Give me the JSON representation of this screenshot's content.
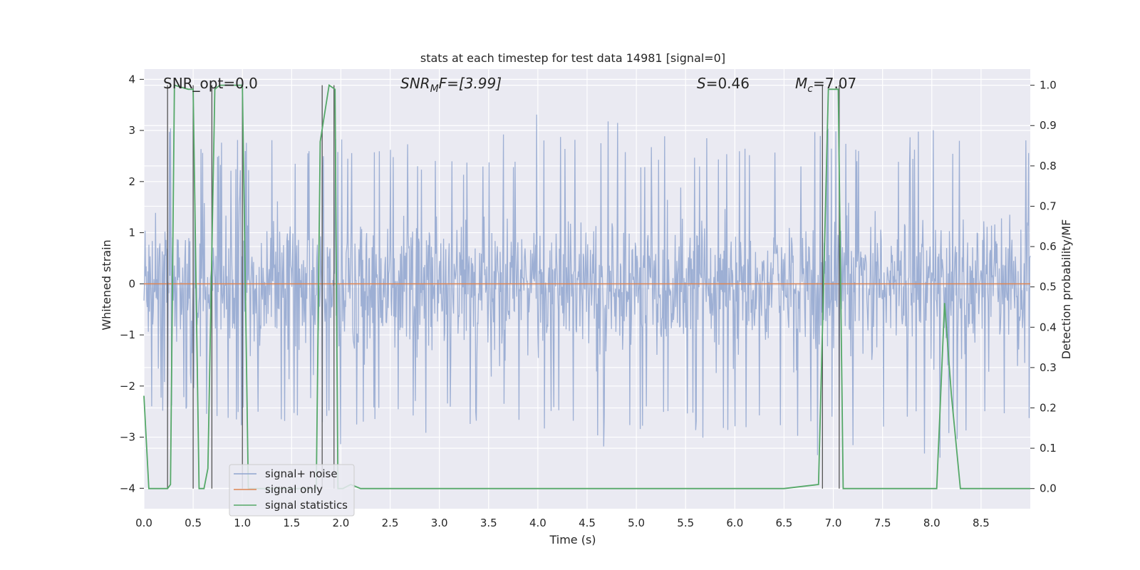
{
  "chart_data": {
    "type": "line",
    "title": "stats at each timestep for test data 14981 [signal=0]",
    "xlabel": "Time (s)",
    "ylabel": "Whitened strain",
    "y2label": "Detection probability/MF",
    "xlim": [
      0.0,
      9.0
    ],
    "ylim": [
      -4.4,
      4.2
    ],
    "y2lim": [
      -0.05,
      1.04
    ],
    "xticks": [
      "0.0",
      "0.5",
      "1.0",
      "1.5",
      "2.0",
      "2.5",
      "3.0",
      "3.5",
      "4.0",
      "4.5",
      "5.0",
      "5.5",
      "6.0",
      "6.5",
      "7.0",
      "7.5",
      "8.0",
      "8.5"
    ],
    "yticks": [
      "4",
      "3",
      "2",
      "1",
      "0",
      "−1",
      "−2",
      "−3",
      "−4"
    ],
    "y2ticks": [
      "1.0",
      "0.9",
      "0.8",
      "0.7",
      "0.6",
      "0.5",
      "0.4",
      "0.3",
      "0.2",
      "0.1",
      "0.0"
    ],
    "grid": true,
    "legend_position": "lower-left",
    "annotations": {
      "snr_opt": "SNR_opt=0.0",
      "snr_mf_main": "SNR",
      "snr_mf_sub": "M",
      "snr_mf_rest": "F=[3.99]",
      "s_var": "S",
      "s_val": "=0.46",
      "mc_var": "M",
      "mc_sub": "c",
      "mc_val": "=7.07"
    },
    "series": [
      {
        "name": "signal+ noise",
        "color": "#8fa4cf",
        "axis": "left",
        "style": "dense noise, approx. ±1.7 core with peaks to ±3.8",
        "envelope_x": [
          0.0,
          0.25,
          0.5,
          0.75,
          1.0,
          1.25,
          1.5,
          1.75,
          2.0,
          2.25,
          2.5,
          2.75,
          3.0,
          3.25,
          3.5,
          3.75,
          4.0,
          4.25,
          4.5,
          4.75,
          5.0,
          5.25,
          5.5,
          5.75,
          6.0,
          6.25,
          6.5,
          6.75,
          7.0,
          7.25,
          7.5,
          7.75,
          8.0,
          8.25,
          8.5,
          8.75,
          9.0
        ],
        "envelope_max": [
          2.6,
          3.3,
          3.5,
          3.0,
          2.9,
          2.8,
          2.9,
          3.0,
          3.1,
          3.0,
          3.3,
          2.9,
          3.0,
          2.8,
          3.0,
          2.9,
          3.5,
          3.0,
          3.1,
          3.8,
          3.0,
          3.0,
          2.9,
          3.0,
          3.2,
          3.0,
          2.9,
          3.0,
          3.2,
          3.0,
          2.9,
          3.0,
          3.0,
          3.3,
          3.2,
          2.9,
          3.0
        ],
        "envelope_min": [
          -2.5,
          -2.5,
          -2.6,
          -2.8,
          -3.0,
          -3.4,
          -3.3,
          -2.7,
          -3.3,
          -2.8,
          -2.9,
          -3.0,
          -3.0,
          -3.2,
          -2.9,
          -3.0,
          -3.5,
          -2.9,
          -3.0,
          -3.3,
          -3.0,
          -2.9,
          -3.0,
          -3.1,
          -3.6,
          -3.0,
          -2.9,
          -3.6,
          -3.0,
          -3.3,
          -3.2,
          -2.9,
          -3.6,
          -3.1,
          -3.0,
          -2.9,
          -3.0
        ]
      },
      {
        "name": "signal only",
        "color": "#dd8452",
        "axis": "left",
        "x": [
          0.0,
          9.0
        ],
        "y": [
          0.0,
          0.0
        ]
      },
      {
        "name": "signal statistics",
        "color": "#55a868",
        "axis": "right",
        "x": [
          0.0,
          0.05,
          0.1,
          0.24,
          0.27,
          0.31,
          0.45,
          0.5,
          0.56,
          0.61,
          0.65,
          0.72,
          0.77,
          1.0,
          1.06,
          1.1,
          1.5,
          1.75,
          1.79,
          1.88,
          1.94,
          1.97,
          2.02,
          2.1,
          2.2,
          2.5,
          2.9,
          3.5,
          3.85,
          3.9,
          4.5,
          5.0,
          5.5,
          6.0,
          6.5,
          6.85,
          6.9,
          6.95,
          7.05,
          7.1,
          7.15,
          7.3,
          7.5,
          8.0,
          8.05,
          8.13,
          8.2,
          8.29,
          8.35,
          9.0
        ],
        "y": [
          0.23,
          0.0,
          0.0,
          0.0,
          0.01,
          1.0,
          0.99,
          0.99,
          0.0,
          0.0,
          0.05,
          0.99,
          1.0,
          1.0,
          0.0,
          0.0,
          0.0,
          0.0,
          0.86,
          1.0,
          0.99,
          0.0,
          0.0,
          0.01,
          0.0,
          0.0,
          0.0,
          0.0,
          0.0,
          0.0,
          0.0,
          0.0,
          0.0,
          0.0,
          0.0,
          0.01,
          0.49,
          0.99,
          0.99,
          0.0,
          0.0,
          0.0,
          0.0,
          0.0,
          0.0,
          0.46,
          0.23,
          0.0,
          0.0,
          0.0
        ]
      }
    ],
    "vertical_markers_x": [
      0.24,
      0.5,
      0.69,
      1.0,
      1.81,
      1.93,
      6.89,
      7.06
    ]
  }
}
